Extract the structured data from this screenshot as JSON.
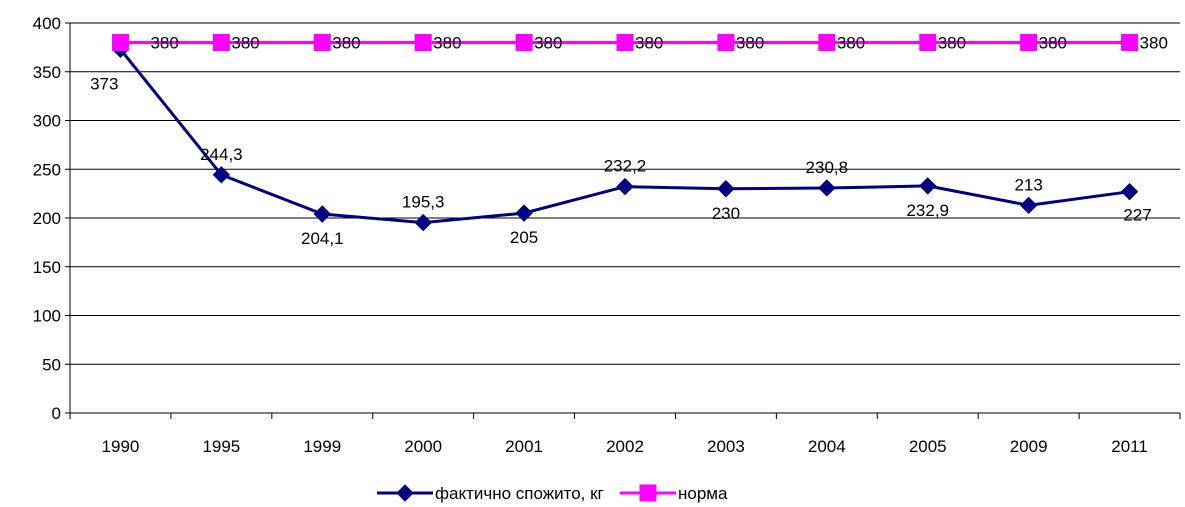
{
  "chart_data": {
    "type": "line",
    "title": "",
    "xlabel": "",
    "ylabel": "",
    "categories": [
      "1990",
      "1995",
      "1999",
      "2000",
      "2001",
      "2002",
      "2003",
      "2004",
      "2005",
      "2009",
      "2011"
    ],
    "ylim": [
      0,
      400
    ],
    "yticks": [
      "0",
      "50",
      "100",
      "150",
      "200",
      "250",
      "300",
      "350",
      "400"
    ],
    "grid": true,
    "legend_position": "bottom",
    "series": [
      {
        "name": "фактично спожито, кг",
        "values": [
          373,
          244.3,
          204.1,
          195.3,
          205,
          232.2,
          230,
          230.8,
          232.9,
          213,
          227
        ],
        "labels": [
          "373",
          "244,3",
          "204,1",
          "195,3",
          "205",
          "232,2",
          "230",
          "230,8",
          "232,9",
          "213",
          "227"
        ],
        "color": "#000080",
        "marker": "diamond"
      },
      {
        "name": "норма",
        "values": [
          380,
          380,
          380,
          380,
          380,
          380,
          380,
          380,
          380,
          380,
          380
        ],
        "labels": [
          "380",
          "380",
          "380",
          "380",
          "380",
          "380",
          "380",
          "380",
          "380",
          "380",
          "380"
        ],
        "color": "#ff00ff",
        "marker": "square"
      }
    ]
  }
}
